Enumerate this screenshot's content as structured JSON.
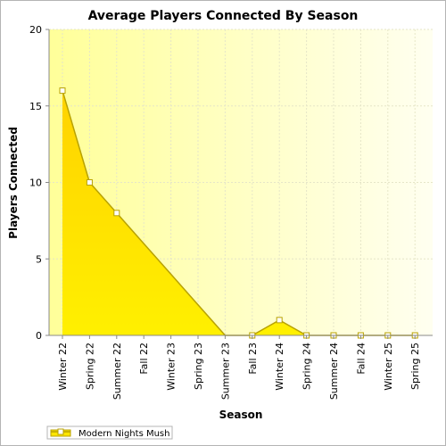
{
  "chart_data": {
    "type": "area",
    "title": "Average Players Connected By Season",
    "xlabel": "Season",
    "ylabel": "Players Connected",
    "categories": [
      "Winter 22",
      "Spring 22",
      "Summer 22",
      "Fall 22",
      "Winter 23",
      "Spring 23",
      "Summer 23",
      "Fall 23",
      "Winter 24",
      "Spring 24",
      "Summer 24",
      "Fall 24",
      "Winter 25",
      "Spring 25"
    ],
    "series": [
      {
        "name": "Modern Nights Mush",
        "values": [
          16,
          10,
          8,
          6,
          4,
          2,
          0,
          0,
          1,
          0,
          0,
          0,
          0,
          0
        ],
        "marked": [
          true,
          true,
          true,
          false,
          false,
          false,
          false,
          true,
          true,
          true,
          true,
          true,
          true,
          true
        ]
      }
    ],
    "ylim": [
      0,
      20
    ],
    "yticks": [
      0,
      5,
      10,
      15,
      20
    ],
    "grid": true,
    "legend": "bottom-left",
    "colors": {
      "fill": "#ffe600",
      "line": "#b8a200",
      "marker_fill": "#ffffff",
      "plot_bg_left": "#ffff99",
      "plot_bg_right": "#fffff0",
      "grid": "#e6e6c8"
    }
  }
}
